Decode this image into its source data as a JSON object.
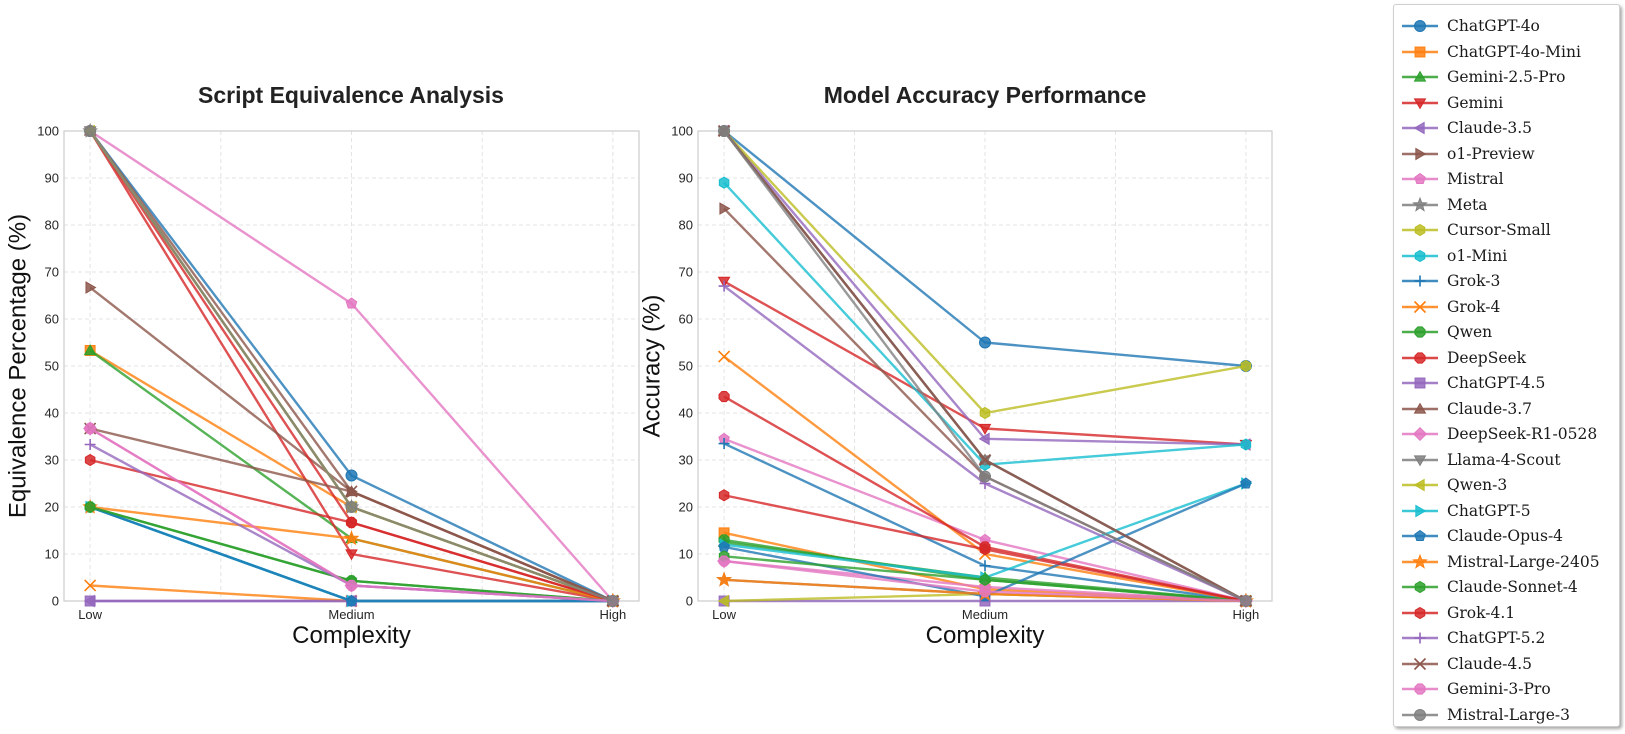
{
  "chart_data": [
    {
      "type": "line",
      "title": "Script Equivalence Analysis",
      "xlabel": "Complexity",
      "ylabel": "Equivalence Percentage (%)",
      "categories": [
        "Low",
        "Medium",
        "High"
      ],
      "ylim": [
        0,
        100
      ],
      "yticks": [
        "0",
        "10",
        "20",
        "30",
        "40",
        "50",
        "60",
        "70",
        "80",
        "90",
        "100"
      ],
      "grid": true,
      "series": [
        {
          "name": "ChatGPT-4o",
          "values": [
            100,
            26.7,
            0
          ]
        },
        {
          "name": "ChatGPT-4o-Mini",
          "values": [
            53.3,
            20,
            0
          ]
        },
        {
          "name": "Gemini-2.5-Pro",
          "values": [
            53.3,
            13.3,
            0
          ]
        },
        {
          "name": "Gemini",
          "values": [
            100,
            10,
            0
          ]
        },
        {
          "name": "Claude-3.5",
          "values": [
            0,
            0,
            0
          ]
        },
        {
          "name": "o1-Preview",
          "values": [
            66.7,
            23.3,
            0
          ]
        },
        {
          "name": "Mistral",
          "values": [
            100,
            63.3,
            0
          ]
        },
        {
          "name": "Meta",
          "values": [
            100,
            20,
            0
          ]
        },
        {
          "name": "Cursor-Small",
          "values": [
            100,
            20,
            0
          ]
        },
        {
          "name": "o1-Mini",
          "values": [
            20,
            0,
            0
          ]
        },
        {
          "name": "Grok-3",
          "values": [
            20,
            0,
            0
          ]
        },
        {
          "name": "Grok-4",
          "values": [
            3.3,
            0,
            0
          ]
        },
        {
          "name": "Qwen",
          "values": [
            20,
            4.3,
            0
          ]
        },
        {
          "name": "DeepSeek",
          "values": [
            100,
            16.7,
            0
          ]
        },
        {
          "name": "ChatGPT-4.5",
          "values": [
            0,
            0,
            0
          ]
        },
        {
          "name": "Claude-3.7",
          "values": [
            100,
            23.3,
            0
          ]
        },
        {
          "name": "DeepSeek-R1-0528",
          "values": [
            36.7,
            3.3,
            0
          ]
        },
        {
          "name": "Llama-4-Scout",
          "values": [
            100,
            20,
            0
          ]
        },
        {
          "name": "Qwen-3",
          "values": [
            100,
            20,
            0
          ]
        },
        {
          "name": "ChatGPT-5",
          "values": [
            20,
            0,
            0
          ]
        },
        {
          "name": "Claude-Opus-4",
          "values": [
            20,
            0,
            0
          ]
        },
        {
          "name": "Mistral-Large-2405",
          "values": [
            20,
            13.3,
            0
          ]
        },
        {
          "name": "Claude-Sonnet-4",
          "values": [
            20,
            4.3,
            0
          ]
        },
        {
          "name": "Grok-4.1",
          "values": [
            30,
            16.7,
            0
          ]
        },
        {
          "name": "ChatGPT-5.2",
          "values": [
            33.3,
            3.3,
            0
          ]
        },
        {
          "name": "Claude-4.5",
          "values": [
            36.7,
            23.3,
            0
          ]
        },
        {
          "name": "Gemini-3-Pro",
          "values": [
            36.7,
            3.3,
            0
          ]
        },
        {
          "name": "Mistral-Large-3",
          "values": [
            100,
            20,
            0
          ]
        }
      ]
    },
    {
      "type": "line",
      "title": "Model Accuracy Performance",
      "xlabel": "Complexity",
      "ylabel": "Accuracy (%)",
      "categories": [
        "Low",
        "Medium",
        "High"
      ],
      "ylim": [
        0,
        100
      ],
      "yticks": [
        "0",
        "10",
        "20",
        "30",
        "40",
        "50",
        "60",
        "70",
        "80",
        "90",
        "100"
      ],
      "grid": true,
      "series": [
        {
          "name": "ChatGPT-4o",
          "values": [
            100,
            55,
            50
          ]
        },
        {
          "name": "ChatGPT-4o-Mini",
          "values": [
            14.5,
            2.5,
            0
          ]
        },
        {
          "name": "Gemini-2.5-Pro",
          "values": [
            12.5,
            5,
            0
          ]
        },
        {
          "name": "Gemini",
          "values": [
            68,
            36.7,
            33.3
          ]
        },
        {
          "name": "Claude-3.5",
          "values": [
            100,
            34.5,
            33.3
          ]
        },
        {
          "name": "o1-Preview",
          "values": [
            83.5,
            26.5,
            0
          ]
        },
        {
          "name": "Mistral",
          "values": [
            34.5,
            13,
            0
          ]
        },
        {
          "name": "Meta",
          "values": [
            4.5,
            1.5,
            0
          ]
        },
        {
          "name": "Cursor-Small",
          "values": [
            100,
            40,
            50
          ]
        },
        {
          "name": "o1-Mini",
          "values": [
            89,
            29,
            33.3
          ]
        },
        {
          "name": "Grok-3",
          "values": [
            33.5,
            7.5,
            0
          ]
        },
        {
          "name": "Grok-4",
          "values": [
            52,
            10,
            0
          ]
        },
        {
          "name": "Qwen",
          "values": [
            13,
            4.5,
            0
          ]
        },
        {
          "name": "DeepSeek",
          "values": [
            43.5,
            11.5,
            0
          ]
        },
        {
          "name": "ChatGPT-4.5",
          "values": [
            0,
            0,
            0
          ]
        },
        {
          "name": "Claude-3.7",
          "values": [
            100,
            30,
            0
          ]
        },
        {
          "name": "DeepSeek-R1-0528",
          "values": [
            8.5,
            3,
            0
          ]
        },
        {
          "name": "Llama-4-Scout",
          "values": [
            100,
            30,
            0
          ]
        },
        {
          "name": "Qwen-3",
          "values": [
            0,
            1.5,
            0
          ]
        },
        {
          "name": "ChatGPT-5",
          "values": [
            12,
            5,
            25
          ]
        },
        {
          "name": "Claude-Opus-4",
          "values": [
            11.5,
            1,
            25
          ]
        },
        {
          "name": "Mistral-Large-2405",
          "values": [
            4.5,
            1.5,
            0
          ]
        },
        {
          "name": "Claude-Sonnet-4",
          "values": [
            9.5,
            4.5,
            0
          ]
        },
        {
          "name": "Grok-4.1",
          "values": [
            22.5,
            11,
            0
          ]
        },
        {
          "name": "ChatGPT-5.2",
          "values": [
            67,
            25,
            0
          ]
        },
        {
          "name": "Claude-4.5",
          "values": [
            100,
            30,
            0
          ]
        },
        {
          "name": "Gemini-3-Pro",
          "values": [
            8.5,
            2,
            0
          ]
        },
        {
          "name": "Mistral-Large-3",
          "values": [
            100,
            26.5,
            0
          ]
        }
      ]
    }
  ],
  "legend": {
    "placement": "right",
    "entries": [
      {
        "name": "ChatGPT-4o",
        "color": "#1f77b4",
        "marker": "circle"
      },
      {
        "name": "ChatGPT-4o-Mini",
        "color": "#ff7f0e",
        "marker": "square"
      },
      {
        "name": "Gemini-2.5-Pro",
        "color": "#2ca02c",
        "marker": "triangle-up"
      },
      {
        "name": "Gemini",
        "color": "#d62728",
        "marker": "triangle-down"
      },
      {
        "name": "Claude-3.5",
        "color": "#9467bd",
        "marker": "triangle-left"
      },
      {
        "name": "o1-Preview",
        "color": "#8c564b",
        "marker": "triangle-right"
      },
      {
        "name": "Mistral",
        "color": "#e377c2",
        "marker": "pentagon"
      },
      {
        "name": "Meta",
        "color": "#7f7f7f",
        "marker": "star"
      },
      {
        "name": "Cursor-Small",
        "color": "#bcbd22",
        "marker": "hexagon"
      },
      {
        "name": "o1-Mini",
        "color": "#17becf",
        "marker": "hexagon"
      },
      {
        "name": "Grok-3",
        "color": "#1f77b4",
        "marker": "plus"
      },
      {
        "name": "Grok-4",
        "color": "#ff7f0e",
        "marker": "x"
      },
      {
        "name": "Qwen",
        "color": "#2ca02c",
        "marker": "octagon"
      },
      {
        "name": "DeepSeek",
        "color": "#d62728",
        "marker": "octagon"
      },
      {
        "name": "ChatGPT-4.5",
        "color": "#9467bd",
        "marker": "square"
      },
      {
        "name": "Claude-3.7",
        "color": "#8c564b",
        "marker": "triangle-up"
      },
      {
        "name": "DeepSeek-R1-0528",
        "color": "#e377c2",
        "marker": "diamond"
      },
      {
        "name": "Llama-4-Scout",
        "color": "#7f7f7f",
        "marker": "triangle-down"
      },
      {
        "name": "Qwen-3",
        "color": "#bcbd22",
        "marker": "triangle-left"
      },
      {
        "name": "ChatGPT-5",
        "color": "#17becf",
        "marker": "triangle-right"
      },
      {
        "name": "Claude-Opus-4",
        "color": "#1f77b4",
        "marker": "pentagon"
      },
      {
        "name": "Mistral-Large-2405",
        "color": "#ff7f0e",
        "marker": "star"
      },
      {
        "name": "Claude-Sonnet-4",
        "color": "#2ca02c",
        "marker": "hexagon"
      },
      {
        "name": "Grok-4.1",
        "color": "#d62728",
        "marker": "hexagon"
      },
      {
        "name": "ChatGPT-5.2",
        "color": "#9467bd",
        "marker": "plus"
      },
      {
        "name": "Claude-4.5",
        "color": "#8c564b",
        "marker": "x"
      },
      {
        "name": "Gemini-3-Pro",
        "color": "#e377c2",
        "marker": "octagon"
      },
      {
        "name": "Mistral-Large-3",
        "color": "#7f7f7f",
        "marker": "circle"
      }
    ]
  }
}
